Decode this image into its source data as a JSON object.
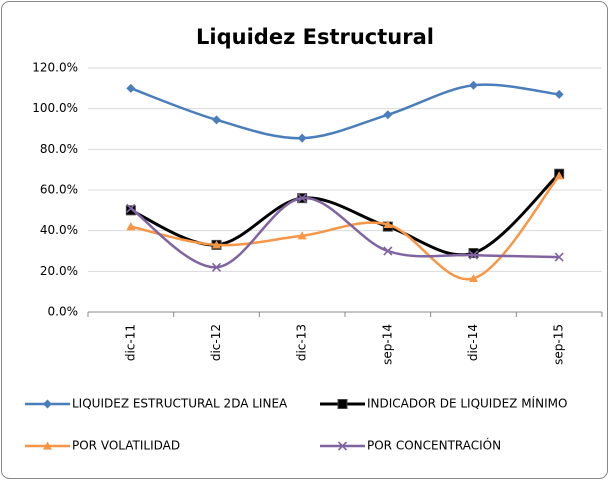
{
  "chart_data": {
    "type": "line",
    "title": "Liquidez Estructural",
    "categories": [
      "dic-11",
      "dic-12",
      "dic-13",
      "sep-14",
      "dic-14",
      "sep-15"
    ],
    "series": [
      {
        "name": "LIQUIDEZ ESTRUCTURAL 2DA LINEA",
        "color": "#4a7ebb",
        "marker": "diamond",
        "values": [
          110,
          94.5,
          85.5,
          97,
          111.5,
          107
        ]
      },
      {
        "name": "INDICADOR DE LIQUIDEZ MÍNIMO",
        "color": "#000000",
        "marker": "square",
        "values": [
          50,
          33,
          56,
          42,
          29,
          68
        ]
      },
      {
        "name": "POR VOLATILIDAD",
        "color": "#f79646",
        "marker": "triangle",
        "values": [
          42,
          33,
          37.5,
          43,
          16.5,
          67
        ]
      },
      {
        "name": "POR CONCENTRACIÓN",
        "color": "#8064a2",
        "marker": "x",
        "values": [
          51,
          22,
          56,
          30,
          28,
          27
        ]
      }
    ],
    "ylim": [
      0,
      120
    ],
    "yticks": [
      {
        "value": 0,
        "label": "0.0%"
      },
      {
        "value": 20,
        "label": "20.0%"
      },
      {
        "value": 40,
        "label": "40.0%"
      },
      {
        "value": 60,
        "label": "60.0%"
      },
      {
        "value": 80,
        "label": "80.0%"
      },
      {
        "value": 100,
        "label": "100.0%"
      },
      {
        "value": 120,
        "label": "120.0%"
      }
    ],
    "grid": true,
    "smooth": true,
    "legend": "bottom"
  }
}
